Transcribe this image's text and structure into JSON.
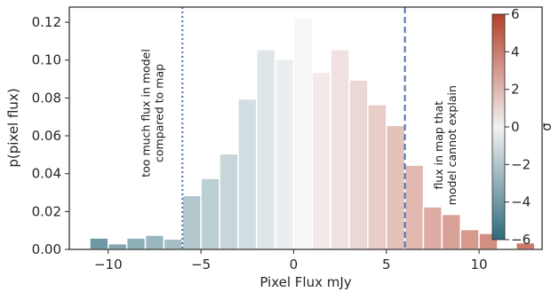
{
  "chart_data": {
    "type": "bar",
    "xlabel": "Pixel Flux mJy",
    "ylabel": "p(pixel flux)",
    "xlim": [
      -12.1,
      13.4
    ],
    "ylim": [
      0,
      0.128
    ],
    "x_ticks": [
      -10,
      -5,
      0,
      5,
      10
    ],
    "x_tick_labels": [
      "−10",
      "−5",
      "0",
      "5",
      "10"
    ],
    "y_ticks": [
      0.0,
      0.02,
      0.04,
      0.06,
      0.08,
      0.1,
      0.12
    ],
    "y_tick_labels": [
      "0.00",
      "0.02",
      "0.04",
      "0.06",
      "0.08",
      "0.10",
      "0.12"
    ],
    "grid": false,
    "bin_edges": [
      -11.0,
      -10.0,
      -9.0,
      -8.0,
      -7.0,
      -6.0,
      -5.0,
      -4.0,
      -3.0,
      -2.0,
      -1.0,
      0.0,
      1.0,
      2.0,
      3.0,
      4.0,
      5.0,
      6.0,
      7.0,
      8.0,
      9.0,
      10.0,
      11.0,
      12.0
    ],
    "values": [
      0.006,
      0.003,
      0.006,
      0.0075,
      0.0055,
      0.0285,
      0.0375,
      0.0505,
      0.0795,
      0.1055,
      0.1005,
      0.1225,
      0.0935,
      0.1055,
      0.0895,
      0.0765,
      0.0655,
      0.0445,
      0.0225,
      0.0185,
      0.0105,
      0.0085,
      0.0005,
      0.0035
    ],
    "sigma_per_bin": [
      -6,
      -5,
      -4.5,
      -4,
      -3.5,
      -3,
      -2.5,
      -2,
      -1.5,
      -1,
      -0.5,
      0,
      0.5,
      1,
      1.5,
      2,
      2.5,
      3,
      3.5,
      4,
      4.5,
      5,
      5.5,
      6
    ],
    "vlines": [
      {
        "x": -6.0,
        "style": "dotted",
        "color": "#4c72b0"
      },
      {
        "x": 6.0,
        "style": "dashed",
        "color": "#4c72b0"
      }
    ],
    "annotations": [
      {
        "lines": [
          "too much flux in model",
          "compared to map"
        ],
        "x": -7.6,
        "y": 0.072
      },
      {
        "lines": [
          "flux in map that",
          "model cannot explain"
        ],
        "x": 8.2,
        "y": 0.055
      }
    ],
    "colorbar": {
      "label": "σ",
      "range": [
        -6,
        6
      ],
      "ticks": [
        -6,
        -4,
        -2,
        0,
        2,
        4,
        6
      ],
      "tick_labels": [
        "−6",
        "−4",
        "−2",
        "0",
        "2",
        "4",
        "6"
      ],
      "color_low": "#2e6b7d",
      "color_mid": "#f2f2f2",
      "color_high": "#b5402a"
    }
  }
}
